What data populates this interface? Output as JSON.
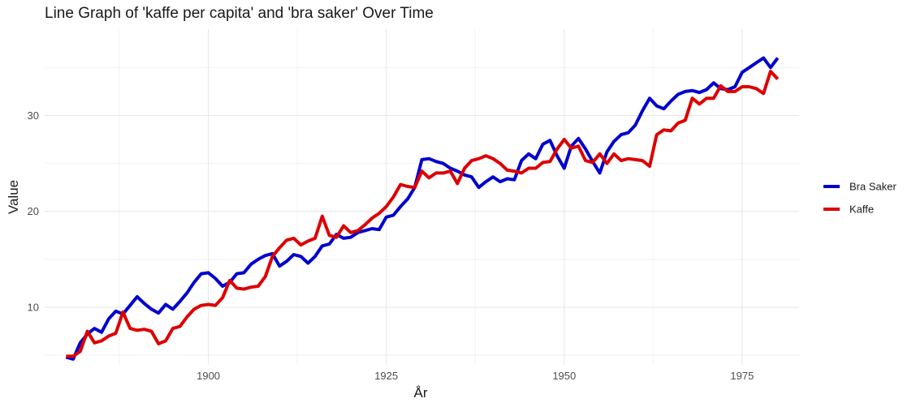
{
  "chart_data": {
    "type": "line",
    "title": "Line Graph of 'kaffe per capita' and 'bra saker' Over Time",
    "xlabel": "År",
    "ylabel": "Value",
    "xlim": [
      1877,
      1983
    ],
    "ylim": [
      4,
      39
    ],
    "x_ticks": [
      1900,
      1925,
      1950,
      1975
    ],
    "y_ticks": [
      10,
      20,
      30
    ],
    "grid": true,
    "legend_position": "right",
    "series": [
      {
        "name": "Bra Saker",
        "color": "#0000cd",
        "x": [
          1880,
          1881,
          1882,
          1883,
          1884,
          1885,
          1886,
          1887,
          1888,
          1889,
          1890,
          1891,
          1892,
          1893,
          1894,
          1895,
          1896,
          1897,
          1898,
          1899,
          1900,
          1901,
          1902,
          1903,
          1904,
          1905,
          1906,
          1907,
          1908,
          1909,
          1910,
          1911,
          1912,
          1913,
          1914,
          1915,
          1916,
          1917,
          1918,
          1919,
          1920,
          1921,
          1922,
          1923,
          1924,
          1925,
          1926,
          1927,
          1928,
          1929,
          1930,
          1931,
          1932,
          1933,
          1934,
          1935,
          1936,
          1937,
          1938,
          1939,
          1940,
          1941,
          1942,
          1943,
          1944,
          1945,
          1946,
          1947,
          1948,
          1949,
          1950,
          1951,
          1952,
          1953,
          1954,
          1955,
          1956,
          1957,
          1958,
          1959,
          1960,
          1961,
          1962,
          1963,
          1964,
          1965,
          1966,
          1967,
          1968,
          1969,
          1970,
          1971,
          1972,
          1973,
          1974,
          1975,
          1976,
          1977,
          1978,
          1979,
          1980
        ],
        "values": [
          4.8,
          4.6,
          6.3,
          7.2,
          7.8,
          7.4,
          8.8,
          9.6,
          9.3,
          10.2,
          11.1,
          10.4,
          9.8,
          9.4,
          10.3,
          9.8,
          10.6,
          11.5,
          12.6,
          13.5,
          13.6,
          13.0,
          12.2,
          12.6,
          13.5,
          13.6,
          14.5,
          15.0,
          15.4,
          15.6,
          14.3,
          14.8,
          15.5,
          15.3,
          14.6,
          15.3,
          16.4,
          16.6,
          17.6,
          17.2,
          17.3,
          17.8,
          18.0,
          18.2,
          18.1,
          19.4,
          19.6,
          20.5,
          21.3,
          22.5,
          25.4,
          25.5,
          25.2,
          25.0,
          24.5,
          24.2,
          23.8,
          23.6,
          22.5,
          23.1,
          23.6,
          23.1,
          23.4,
          23.3,
          25.3,
          26.0,
          25.5,
          27.0,
          27.4,
          25.8,
          24.5,
          26.8,
          27.6,
          26.5,
          25.2,
          24.0,
          26.2,
          27.3,
          28.0,
          28.2,
          29.0,
          30.5,
          31.8,
          31.0,
          30.7,
          31.5,
          32.2,
          32.5,
          32.6,
          32.4,
          32.7,
          33.4,
          32.8,
          32.7,
          33.0,
          34.5,
          35.0,
          35.5,
          36.0,
          35.0,
          36.0
        ]
      },
      {
        "name": "Kaffe",
        "color": "#dd0000",
        "x": [
          1880,
          1881,
          1882,
          1883,
          1884,
          1885,
          1886,
          1887,
          1888,
          1889,
          1890,
          1891,
          1892,
          1893,
          1894,
          1895,
          1896,
          1897,
          1898,
          1899,
          1900,
          1901,
          1902,
          1903,
          1904,
          1905,
          1906,
          1907,
          1908,
          1909,
          1910,
          1911,
          1912,
          1913,
          1914,
          1915,
          1916,
          1917,
          1918,
          1919,
          1920,
          1921,
          1922,
          1923,
          1924,
          1925,
          1926,
          1927,
          1928,
          1929,
          1930,
          1931,
          1932,
          1933,
          1934,
          1935,
          1936,
          1937,
          1938,
          1939,
          1940,
          1941,
          1942,
          1943,
          1944,
          1945,
          1946,
          1947,
          1948,
          1949,
          1950,
          1951,
          1952,
          1953,
          1954,
          1955,
          1956,
          1957,
          1958,
          1959,
          1960,
          1961,
          1962,
          1963,
          1964,
          1965,
          1966,
          1967,
          1968,
          1969,
          1970,
          1971,
          1972,
          1973,
          1974,
          1975,
          1976,
          1977,
          1978,
          1979,
          1980
        ],
        "values": [
          4.9,
          4.9,
          5.4,
          7.5,
          6.3,
          6.5,
          7.0,
          7.3,
          9.5,
          7.8,
          7.6,
          7.7,
          7.5,
          6.2,
          6.5,
          7.8,
          8.0,
          9.0,
          9.8,
          10.2,
          10.3,
          10.2,
          11.0,
          12.8,
          12.0,
          11.9,
          12.1,
          12.2,
          13.2,
          15.3,
          16.2,
          17.0,
          17.2,
          16.5,
          16.9,
          17.2,
          19.5,
          17.5,
          17.3,
          18.5,
          17.8,
          18.0,
          18.6,
          19.3,
          19.8,
          20.5,
          21.5,
          22.8,
          22.6,
          22.5,
          24.2,
          23.5,
          24.0,
          24.0,
          24.2,
          22.9,
          24.5,
          25.3,
          25.5,
          25.8,
          25.5,
          25.0,
          24.3,
          24.2,
          24.0,
          24.5,
          24.5,
          25.1,
          25.2,
          26.5,
          27.5,
          26.6,
          26.8,
          25.3,
          25.1,
          26.0,
          25.0,
          26.0,
          25.3,
          25.5,
          25.4,
          25.3,
          24.7,
          28.0,
          28.5,
          28.4,
          29.2,
          29.5,
          31.8,
          31.2,
          31.8,
          31.8,
          33.1,
          32.5,
          32.5,
          33.0,
          33.0,
          32.8,
          32.3,
          34.6,
          33.8
        ]
      }
    ]
  }
}
